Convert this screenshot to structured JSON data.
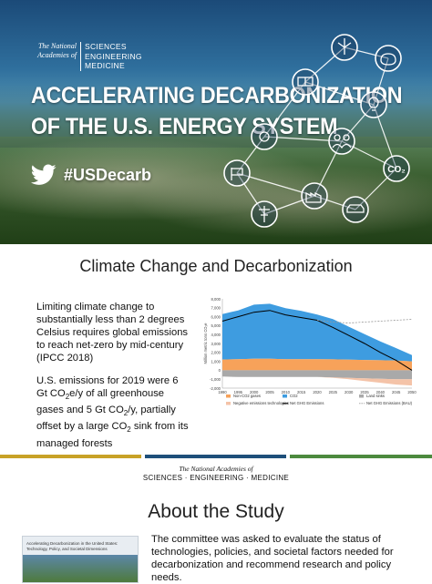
{
  "hero": {
    "org_prefix": "The National Academies of",
    "org_lines": [
      "SCIENCES",
      "ENGINEERING",
      "MEDICINE"
    ],
    "title_line1": "ACCELERATING DECARBONIZATION",
    "title_line2": "OF THE U.S. ENERGY SYSTEM",
    "hashtag": "#USDecarb",
    "icons": [
      "wind-turbine-icon",
      "piggy-bank-icon",
      "solar-panel-icon",
      "lightbulb-icon",
      "co2-icon",
      "power-line-icon",
      "car-icon",
      "people-icon",
      "factory-icon",
      "gear-icon",
      "flag-icon"
    ]
  },
  "section1": {
    "title": "Climate Change and Decarbonization",
    "para1": "Limiting climate change to substantially less than 2 degrees Celsius requires global emissions to reach net-zero by mid-century (IPCC 2018)",
    "para2_parts": [
      "U.S. emissions for 2019 were 6 Gt CO",
      "2",
      "e/y of all greenhouse gases and 5 Gt CO",
      "2",
      "/y, partially offset by a large CO",
      "2",
      " sink from its managed forests"
    ]
  },
  "chart_data": {
    "type": "area",
    "title": "",
    "xlabel": "",
    "ylabel": "Million metric tons CO₂e",
    "ylim": [
      -2000,
      8000
    ],
    "yticks": [
      "8,000",
      "7,000",
      "6,000",
      "5,000",
      "4,000",
      "3,000",
      "2,000",
      "1,000",
      "0",
      "-1,000",
      "-2,000"
    ],
    "xticks": [
      "1990",
      "1995",
      "2000",
      "2005",
      "2010",
      "2015",
      "2020",
      "2025",
      "2030",
      "2035",
      "2040",
      "2045",
      "2050"
    ],
    "x": [
      1990,
      1995,
      2000,
      2005,
      2010,
      2015,
      2020,
      2025,
      2030,
      2035,
      2040,
      2045,
      2050
    ],
    "series": [
      {
        "name": "Non-CO2 gases",
        "color": "#f7a25a",
        "values": [
          1200,
          1250,
          1300,
          1300,
          1250,
          1250,
          1250,
          1220,
          1180,
          1150,
          1120,
          1080,
          1000
        ]
      },
      {
        "name": "CO2",
        "color": "#3e9ce0",
        "values": [
          5100,
          5450,
          6050,
          6150,
          5700,
          5400,
          5000,
          4500,
          3700,
          2900,
          2100,
          1400,
          700
        ]
      },
      {
        "name": "Land sinks",
        "color": "#a9a9a9",
        "values": [
          -700,
          -750,
          -750,
          -760,
          -760,
          -760,
          -760,
          -800,
          -850,
          -900,
          -950,
          -1000,
          -1000
        ]
      },
      {
        "name": "Negative emissions technologies",
        "color": "#f4c3a8",
        "values": [
          0,
          0,
          0,
          0,
          0,
          0,
          0,
          -50,
          -150,
          -300,
          -450,
          -600,
          -700
        ]
      },
      {
        "name": "Net GHG Emissions",
        "color": "#000000",
        "values": [
          5500,
          6000,
          6500,
          6700,
          6200,
          5900,
          5600,
          4800,
          3900,
          3000,
          2000,
          1100,
          0
        ]
      },
      {
        "name": "Net GHG Emissions (BAU)",
        "color": "#999999",
        "values": [
          null,
          null,
          null,
          null,
          null,
          null,
          5600,
          5400,
          5300,
          5400,
          5500,
          5600,
          5700
        ]
      }
    ],
    "legend": [
      "Non-CO2 gases",
      "CO2",
      "Land sinks",
      "Negative emissions technologies",
      "Net GHG Emissions",
      "Net GHG Emissions (BAU)"
    ],
    "legend_position": "bottom",
    "grid": false
  },
  "divider": {
    "org_prefix": "The National Academies of",
    "org_line": "SCIENCES · ENGINEERING · MEDICINE",
    "colors": [
      "#c8a227",
      "#1e4f7a",
      "#4c8a3e"
    ]
  },
  "section2": {
    "title": "About the Study",
    "cover_title": "Accelerating Decarbonization in the United States: Technology, Policy, and Societal Dimensions",
    "text": "The committee was asked to evaluate the status of technologies, policies, and societal factors needed for decarbonization and recommend research and policy needs."
  }
}
